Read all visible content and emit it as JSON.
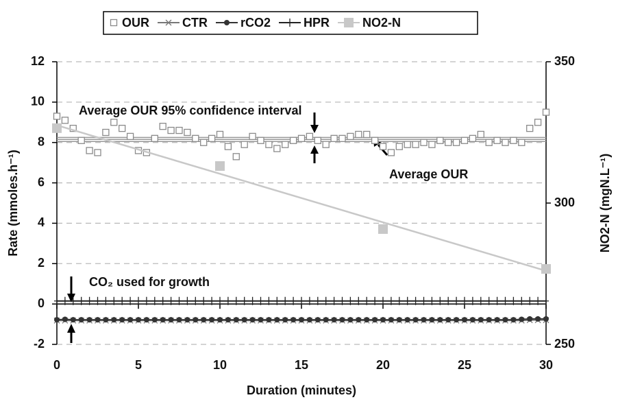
{
  "chart_data": {
    "type": "scatter",
    "xlabel": "Duration (minutes)",
    "ylabel": "Rate (mmoles.h⁻¹)",
    "y2label": "NO2-N (mgN.L⁻¹)",
    "xlim": [
      0,
      30
    ],
    "xticks": [
      0,
      5,
      10,
      15,
      20,
      25,
      30
    ],
    "ylim": [
      -2,
      12
    ],
    "yticks": [
      -2,
      0,
      2,
      4,
      6,
      8,
      10,
      12
    ],
    "y2lim": [
      250,
      350
    ],
    "y2ticks": [
      250,
      300,
      350
    ],
    "grid": true,
    "x": [
      0,
      0.5,
      1,
      1.5,
      2,
      2.5,
      3,
      3.5,
      4,
      4.5,
      5,
      5.5,
      6,
      6.5,
      7,
      7.5,
      8,
      8.5,
      9,
      9.5,
      10,
      10.5,
      11,
      11.5,
      12,
      12.5,
      13,
      13.5,
      14,
      14.5,
      15,
      15.5,
      16,
      16.5,
      17,
      17.5,
      18,
      18.5,
      19,
      19.5,
      20,
      20.5,
      21,
      21.5,
      22,
      22.5,
      23,
      23.5,
      24,
      24.5,
      25,
      25.5,
      26,
      26.5,
      27,
      27.5,
      28,
      28.5,
      29,
      29.5,
      30
    ],
    "series": [
      {
        "name": "OUR",
        "color": "#8a8a8a",
        "marker": "open-square",
        "values": [
          9.3,
          9.1,
          8.7,
          8.1,
          7.6,
          7.5,
          8.5,
          9.0,
          8.7,
          8.3,
          7.6,
          7.5,
          8.2,
          8.8,
          8.6,
          8.6,
          8.5,
          8.2,
          8.0,
          8.2,
          8.4,
          7.8,
          7.3,
          7.9,
          8.3,
          8.1,
          7.9,
          7.7,
          7.9,
          8.1,
          8.2,
          8.3,
          8.1,
          7.9,
          8.2,
          8.2,
          8.3,
          8.4,
          8.4,
          8.1,
          7.8,
          7.5,
          7.8,
          7.9,
          7.9,
          8.0,
          7.9,
          8.1,
          8.0,
          8.0,
          8.1,
          8.2,
          8.4,
          8.0,
          8.1,
          8.0,
          8.1,
          8.0,
          8.7,
          9.0,
          9.5
        ]
      },
      {
        "name": "CTR",
        "color": "#777777",
        "marker": "cross",
        "values": [
          -0.82,
          -0.82,
          -0.82,
          -0.82,
          -0.82,
          -0.82,
          -0.82,
          -0.82,
          -0.82,
          -0.82,
          -0.82,
          -0.82,
          -0.82,
          -0.82,
          -0.82,
          -0.82,
          -0.82,
          -0.82,
          -0.82,
          -0.82,
          -0.82,
          -0.82,
          -0.82,
          -0.82,
          -0.82,
          -0.82,
          -0.82,
          -0.82,
          -0.82,
          -0.82,
          -0.82,
          -0.82,
          -0.82,
          -0.82,
          -0.82,
          -0.82,
          -0.82,
          -0.82,
          -0.82,
          -0.82,
          -0.82,
          -0.82,
          -0.82,
          -0.82,
          -0.82,
          -0.82,
          -0.82,
          -0.82,
          -0.82,
          -0.82,
          -0.82,
          -0.82,
          -0.82,
          -0.82,
          -0.82,
          -0.82,
          -0.82,
          -0.82,
          -0.8,
          -0.8,
          -0.8
        ]
      },
      {
        "name": "rCO2",
        "color": "#333333",
        "marker": "circle",
        "values": [
          -0.78,
          -0.76,
          -0.78,
          -0.78,
          -0.78,
          -0.78,
          -0.78,
          -0.78,
          -0.78,
          -0.78,
          -0.78,
          -0.78,
          -0.78,
          -0.78,
          -0.78,
          -0.78,
          -0.78,
          -0.78,
          -0.78,
          -0.78,
          -0.78,
          -0.78,
          -0.78,
          -0.78,
          -0.78,
          -0.78,
          -0.78,
          -0.78,
          -0.78,
          -0.78,
          -0.78,
          -0.78,
          -0.78,
          -0.78,
          -0.78,
          -0.78,
          -0.78,
          -0.78,
          -0.78,
          -0.78,
          -0.78,
          -0.78,
          -0.78,
          -0.78,
          -0.78,
          -0.78,
          -0.78,
          -0.78,
          -0.78,
          -0.78,
          -0.78,
          -0.78,
          -0.78,
          -0.78,
          -0.78,
          -0.78,
          -0.78,
          -0.76,
          -0.74,
          -0.74,
          -0.74
        ]
      },
      {
        "name": "HPR",
        "color": "#222222",
        "marker": "plus",
        "values": [
          0.15,
          0.15,
          0.15,
          0.15,
          0.15,
          0.15,
          0.15,
          0.15,
          0.15,
          0.15,
          0.15,
          0.15,
          0.15,
          0.15,
          0.15,
          0.15,
          0.15,
          0.15,
          0.15,
          0.15,
          0.15,
          0.15,
          0.15,
          0.15,
          0.15,
          0.15,
          0.15,
          0.15,
          0.15,
          0.15,
          0.15,
          0.15,
          0.15,
          0.15,
          0.15,
          0.15,
          0.15,
          0.15,
          0.15,
          0.15,
          0.15,
          0.15,
          0.15,
          0.15,
          0.15,
          0.15,
          0.15,
          0.15,
          0.15,
          0.15,
          0.15,
          0.15,
          0.15,
          0.15,
          0.15,
          0.15,
          0.15,
          0.15,
          0.15,
          0.15,
          0.15
        ]
      },
      {
        "name": "NO2-N",
        "color": "#c8c8c8",
        "marker": "square",
        "axis": "y2",
        "trendline": true,
        "x": [
          0,
          10,
          20,
          30
        ],
        "values": [
          326.5,
          313.1,
          290.8,
          276.7
        ]
      }
    ],
    "reference_lines": [
      8.05,
      8.15,
      8.25
    ],
    "reference_color": "#999999",
    "annotations": [
      "Average OUR 95% confidence interval",
      "Average OUR",
      "CO₂ used for growth"
    ]
  }
}
